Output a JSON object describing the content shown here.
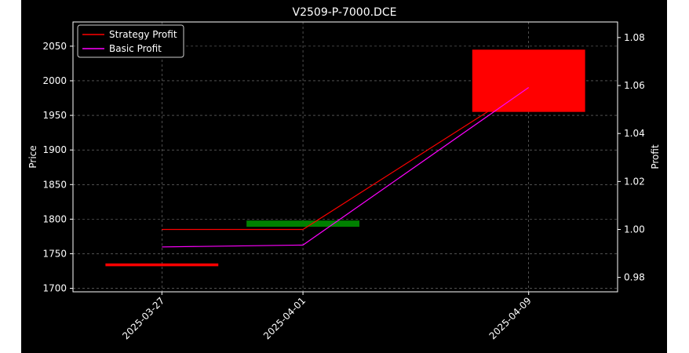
{
  "chart_data": {
    "type": "candlestick+line",
    "title": "V2509-P-7000.DCE",
    "x_dates": [
      "2025-03-27",
      "2025-04-01",
      "2025-04-09"
    ],
    "x_ticks": [
      "2025-03-27",
      "2025-04-01",
      "2025-04-09"
    ],
    "left_axis": {
      "label": "Price",
      "ylim": [
        1695,
        2085
      ],
      "ticks": [
        1700,
        1750,
        1800,
        1850,
        1900,
        1950,
        2000,
        2050
      ]
    },
    "right_axis": {
      "label": "Profit",
      "ylim": [
        0.974,
        1.0865
      ],
      "ticks": [
        0.98,
        1.0,
        1.02,
        1.04,
        1.06,
        1.08
      ],
      "tick_labels": [
        "0.98",
        "1.00",
        "1.02",
        "1.04",
        "1.06",
        "1.08"
      ]
    },
    "candles": [
      {
        "date": "2025-03-27",
        "open": 1736,
        "close": 1732,
        "direction": "down",
        "color": "#ff0000"
      },
      {
        "date": "2025-04-01",
        "open": 1789,
        "close": 1798,
        "direction": "up",
        "color": "#008000"
      },
      {
        "date": "2025-04-09",
        "open": 2045,
        "close": 1955,
        "direction": "down",
        "color": "#ff0000"
      }
    ],
    "series": [
      {
        "name": "Strategy Profit",
        "color": "#ff0000",
        "axis": "right",
        "values": [
          1.0,
          1.0,
          1.06
        ]
      },
      {
        "name": "Basic Profit",
        "color": "#ff00ff",
        "axis": "right",
        "values": [
          0.9927,
          0.9935,
          1.0592
        ]
      }
    ],
    "legend_position": "top-left",
    "grid": true,
    "background": "#000000"
  }
}
